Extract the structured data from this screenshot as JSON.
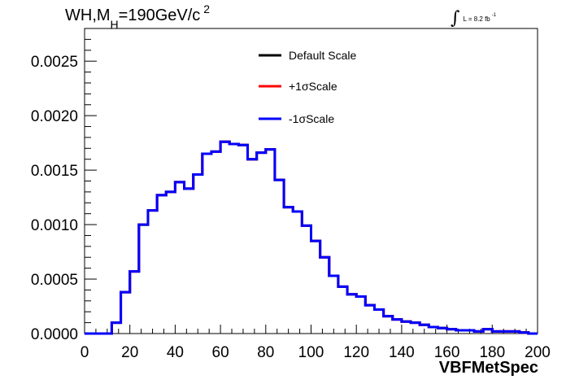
{
  "chart_data": {
    "type": "line",
    "title_parts": {
      "base": "WH,M",
      "sub": "H",
      "mid": "=190GeV/c",
      "sup": "2"
    },
    "lumi": {
      "integral": "∫",
      "text": "L = 8.2 fb",
      "sup": "-1"
    },
    "xlabel": "VBFMetSpec",
    "ylabel": "",
    "xlim": [
      0,
      200
    ],
    "ylim": [
      0,
      0.0028
    ],
    "x_ticks": [
      "0",
      "20",
      "40",
      "60",
      "80",
      "100",
      "120",
      "140",
      "160",
      "180",
      "200"
    ],
    "y_ticks": [
      "0.0000",
      "0.0005",
      "0.0010",
      "0.0015",
      "0.0020",
      "0.0025"
    ],
    "bin_width": 4,
    "bin_low_edges": [
      0,
      4,
      8,
      12,
      16,
      20,
      24,
      28,
      32,
      36,
      40,
      44,
      48,
      52,
      56,
      60,
      64,
      68,
      72,
      76,
      80,
      84,
      88,
      92,
      96,
      100,
      104,
      108,
      112,
      116,
      120,
      124,
      128,
      132,
      136,
      140,
      144,
      148,
      152,
      156,
      160,
      164,
      168,
      172,
      176,
      180,
      184,
      188,
      192,
      196
    ],
    "series": [
      {
        "name": "Default Scale",
        "color": "#000000",
        "values": [
          0,
          0,
          0,
          0.0001,
          0.00038,
          0.00057,
          0.001,
          0.00113,
          0.00127,
          0.0013,
          0.00139,
          0.00133,
          0.00146,
          0.00165,
          0.00167,
          0.00176,
          0.00174,
          0.00173,
          0.0016,
          0.00166,
          0.00169,
          0.00141,
          0.00116,
          0.00112,
          0.00099,
          0.00085,
          0.0007,
          0.00053,
          0.00043,
          0.00036,
          0.00034,
          0.00026,
          0.00022,
          0.00016,
          0.00013,
          0.00011,
          0.0001,
          8e-05,
          6e-05,
          5e-05,
          4e-05,
          3e-05,
          3e-05,
          2e-05,
          4e-05,
          2e-05,
          2e-05,
          2e-05,
          1e-05,
          0
        ]
      },
      {
        "name": "+1σScale",
        "color": "#ff0000",
        "values": [
          0,
          0,
          0,
          0.0001,
          0.00038,
          0.00057,
          0.001,
          0.00113,
          0.00127,
          0.0013,
          0.00139,
          0.00133,
          0.00146,
          0.00165,
          0.00167,
          0.00176,
          0.00174,
          0.00173,
          0.0016,
          0.00166,
          0.00169,
          0.00141,
          0.00116,
          0.00112,
          0.00099,
          0.00085,
          0.0007,
          0.00053,
          0.00043,
          0.00036,
          0.00034,
          0.00026,
          0.00022,
          0.00016,
          0.00013,
          0.00011,
          0.0001,
          8e-05,
          6e-05,
          5e-05,
          4e-05,
          3e-05,
          3e-05,
          2e-05,
          4e-05,
          2e-05,
          2e-05,
          2e-05,
          1e-05,
          0
        ]
      },
      {
        "name": "-1σScale",
        "color": "#0000ff",
        "values": [
          0,
          0,
          0,
          0.0001,
          0.00038,
          0.00057,
          0.001,
          0.00113,
          0.00127,
          0.0013,
          0.00139,
          0.00133,
          0.00146,
          0.00165,
          0.00167,
          0.00176,
          0.00174,
          0.00173,
          0.0016,
          0.00166,
          0.00169,
          0.00141,
          0.00116,
          0.00112,
          0.00099,
          0.00085,
          0.0007,
          0.00053,
          0.00043,
          0.00036,
          0.00034,
          0.00026,
          0.00022,
          0.00016,
          0.00013,
          0.00011,
          0.0001,
          8e-05,
          6e-05,
          5e-05,
          4e-05,
          3e-05,
          3e-05,
          2e-05,
          4e-05,
          2e-05,
          2e-05,
          2e-05,
          1e-05,
          0
        ]
      }
    ],
    "legend_position": "top-center",
    "grid": false
  }
}
